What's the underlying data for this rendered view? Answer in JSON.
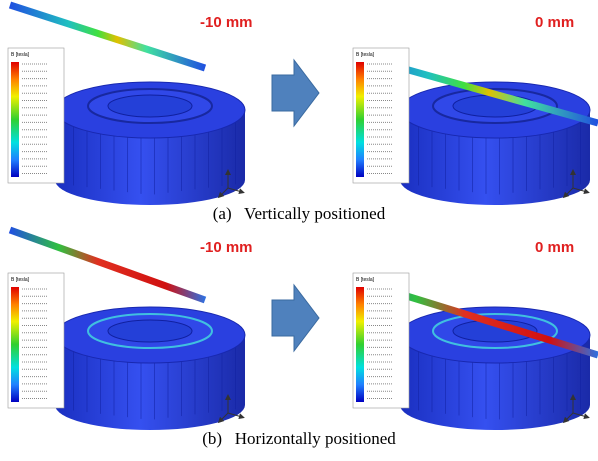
{
  "figure": {
    "rows": [
      {
        "caption": "(a)   Vertically positioned",
        "panels": [
          {
            "offset_label": "-10 mm",
            "legend_title": "B [tesla]"
          },
          {
            "offset_label": "0 mm",
            "legend_title": "B [tesla]"
          }
        ]
      },
      {
        "caption": "(b)   Horizontally positioned",
        "panels": [
          {
            "offset_label": "-10 mm",
            "legend_title": "B [tesla]"
          },
          {
            "offset_label": "0 mm",
            "legend_title": "B [tesla]"
          }
        ]
      }
    ]
  }
}
